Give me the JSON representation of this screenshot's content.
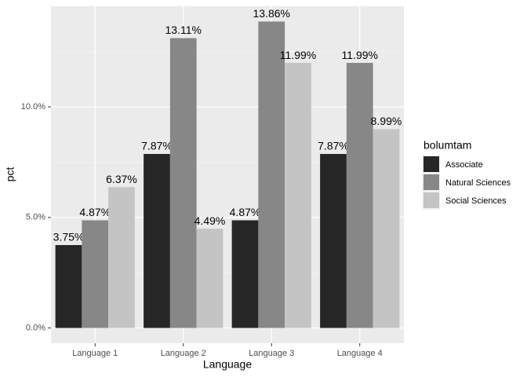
{
  "chart_data": {
    "type": "bar",
    "x_label": "Language",
    "y_label": "pct",
    "categories": [
      "Language 1",
      "Language 2",
      "Language 3",
      "Language 4"
    ],
    "series": [
      {
        "name": "Associate",
        "color": "#262626",
        "values": [
          3.75,
          7.87,
          4.87,
          7.87
        ],
        "value_labels": [
          "3.75%",
          "7.87%",
          "4.87%",
          "7.87%"
        ]
      },
      {
        "name": "Natural Sciences",
        "color": "#878787",
        "values": [
          4.87,
          13.11,
          13.86,
          11.99
        ],
        "value_labels": [
          "4.87%",
          "13.11%",
          "13.86%",
          "11.99%"
        ]
      },
      {
        "name": "Social Sciences",
        "color": "#c4c4c4",
        "values": [
          6.37,
          4.49,
          11.99,
          8.99
        ],
        "value_labels": [
          "6.37%",
          "4.49%",
          "11.99%",
          "8.99%"
        ]
      }
    ],
    "ylim": [
      -0.69,
      14.55
    ],
    "yticks": [
      {
        "value": 0,
        "label": "0.0%"
      },
      {
        "value": 5,
        "label": "5.0%"
      },
      {
        "value": 10,
        "label": "10.0%"
      }
    ],
    "legend_title": "bolumtam",
    "legend_position": "right",
    "grid": true
  }
}
